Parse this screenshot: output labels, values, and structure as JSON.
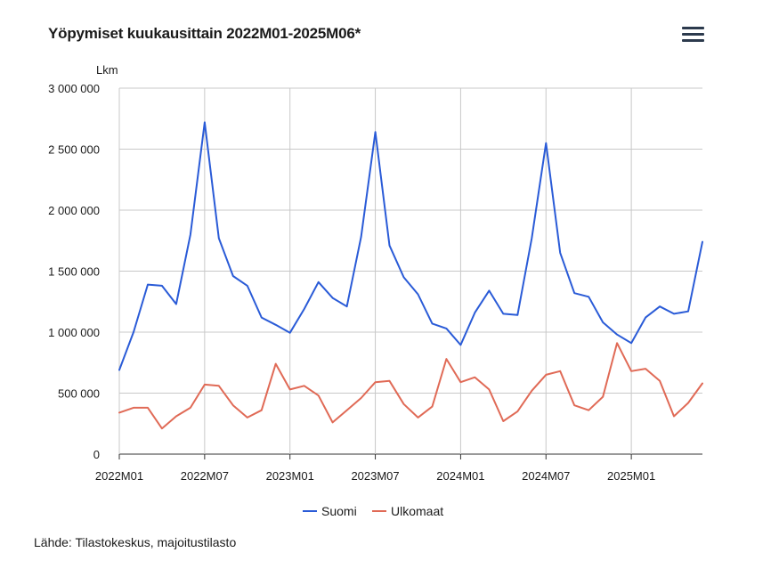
{
  "title": "Yöpymiset kuukausittain 2022M01-2025M06*",
  "source": "Lähde: Tilastokeskus, majoitustilasto",
  "menu_icon": "hamburger-menu-icon",
  "chart_data": {
    "type": "line",
    "title": "Yöpymiset kuukausittain 2022M01-2025M06*",
    "ylabel": "Lkm",
    "xlabel": "",
    "ylim": [
      0,
      3000000
    ],
    "yticks": [
      0,
      500000,
      1000000,
      1500000,
      2000000,
      2500000,
      3000000
    ],
    "ytick_labels": [
      "0",
      "500 000",
      "1 000 000",
      "1 500 000",
      "2 000 000",
      "2 500 000",
      "3 000 000"
    ],
    "x": [
      "2022M01",
      "2022M02",
      "2022M03",
      "2022M04",
      "2022M05",
      "2022M06",
      "2022M07",
      "2022M08",
      "2022M09",
      "2022M10",
      "2022M11",
      "2022M12",
      "2023M01",
      "2023M02",
      "2023M03",
      "2023M04",
      "2023M05",
      "2023M06",
      "2023M07",
      "2023M08",
      "2023M09",
      "2023M10",
      "2023M11",
      "2023M12",
      "2024M01",
      "2024M02",
      "2024M03",
      "2024M04",
      "2024M05",
      "2024M06",
      "2024M07",
      "2024M08",
      "2024M09",
      "2024M10",
      "2024M11",
      "2024M12",
      "2025M01",
      "2025M02",
      "2025M03",
      "2025M04",
      "2025M05",
      "2025M06"
    ],
    "xtick_labels": [
      "2022M01",
      "2022M07",
      "2023M01",
      "2023M07",
      "2024M01",
      "2024M07",
      "2025M01"
    ],
    "grid": true,
    "legend_position": "bottom",
    "series": [
      {
        "name": "Suomi",
        "color": "#2a5bd7",
        "values": [
          690000,
          1000000,
          1390000,
          1380000,
          1230000,
          1800000,
          2720000,
          1770000,
          1460000,
          1380000,
          1120000,
          1060000,
          995000,
          1190000,
          1410000,
          1280000,
          1210000,
          1780000,
          2640000,
          1710000,
          1450000,
          1310000,
          1070000,
          1030000,
          895000,
          1160000,
          1340000,
          1150000,
          1140000,
          1770000,
          2550000,
          1650000,
          1320000,
          1290000,
          1080000,
          980000,
          910000,
          1120000,
          1210000,
          1150000,
          1170000,
          1740000
        ]
      },
      {
        "name": "Ulkomaat",
        "color": "#e06a56",
        "values": [
          340000,
          380000,
          380000,
          210000,
          310000,
          380000,
          570000,
          560000,
          400000,
          300000,
          360000,
          740000,
          530000,
          560000,
          480000,
          260000,
          360000,
          460000,
          590000,
          600000,
          410000,
          300000,
          390000,
          780000,
          590000,
          630000,
          530000,
          270000,
          350000,
          520000,
          650000,
          680000,
          400000,
          360000,
          470000,
          910000,
          680000,
          700000,
          600000,
          310000,
          420000,
          580000
        ]
      }
    ]
  }
}
